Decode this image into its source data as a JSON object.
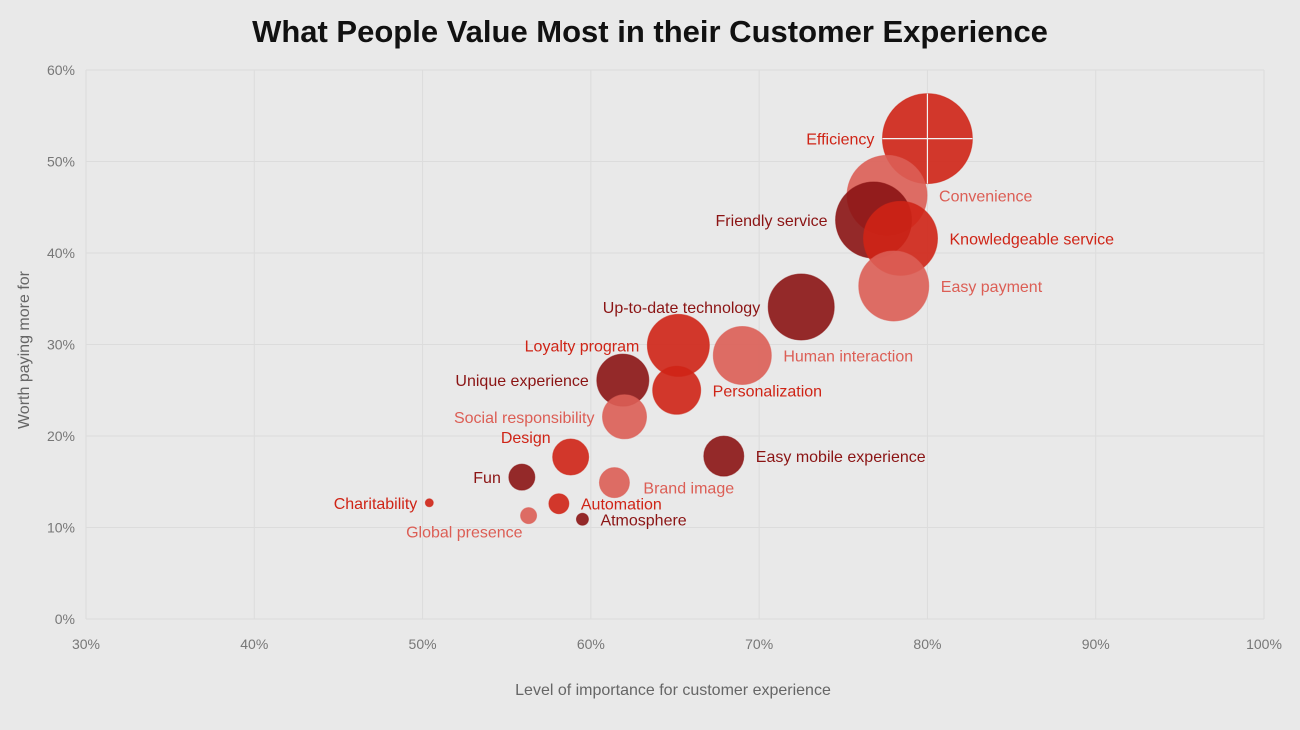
{
  "chart_data": {
    "type": "scatter",
    "title": "What People Value Most in their Customer Experience",
    "xlabel": "Level of importance for customer experience",
    "ylabel": "Worth paying more for",
    "xlim": [
      30,
      100
    ],
    "ylim": [
      0,
      60
    ],
    "x_ticks": [
      "30%",
      "40%",
      "50%",
      "60%",
      "70%",
      "80%",
      "90%",
      "100%"
    ],
    "y_ticks": [
      "0%",
      "10%",
      "20%",
      "30%",
      "40%",
      "50%",
      "60%"
    ],
    "grid": true,
    "colors": {
      "dark": "#8b1414",
      "medium": "#cf2416",
      "light": "#dc5e55"
    },
    "points": [
      {
        "label": "Efficiency",
        "x": 80.0,
        "y": 52.5,
        "size": 45,
        "tone": "medium",
        "label_side": "left"
      },
      {
        "label": "Convenience",
        "x": 77.6,
        "y": 46.3,
        "size": 40,
        "tone": "light",
        "label_side": "right"
      },
      {
        "label": "Friendly service",
        "x": 76.8,
        "y": 43.6,
        "size": 38,
        "tone": "dark",
        "label_side": "left"
      },
      {
        "label": "Knowledgeable service",
        "x": 78.4,
        "y": 41.6,
        "size": 37,
        "tone": "medium",
        "label_side": "right"
      },
      {
        "label": "Easy payment",
        "x": 78.0,
        "y": 36.4,
        "size": 35,
        "tone": "light",
        "label_side": "right"
      },
      {
        "label": "Up-to-date technology",
        "x": 72.5,
        "y": 34.1,
        "size": 33,
        "tone": "dark",
        "label_side": "left"
      },
      {
        "label": "Loyalty program",
        "x": 65.2,
        "y": 29.9,
        "size": 31,
        "tone": "medium",
        "label_side": "left"
      },
      {
        "label": "Human interaction",
        "x": 69.0,
        "y": 28.8,
        "size": 29,
        "tone": "light",
        "label_side": "right"
      },
      {
        "label": "Unique experience",
        "x": 61.9,
        "y": 26.1,
        "size": 26,
        "tone": "dark",
        "label_side": "left"
      },
      {
        "label": "Personalization",
        "x": 65.1,
        "y": 25.0,
        "size": 24,
        "tone": "medium",
        "label_side": "right"
      },
      {
        "label": "Social responsibility",
        "x": 62.0,
        "y": 22.1,
        "size": 22,
        "tone": "light",
        "label_side": "left"
      },
      {
        "label": "Design",
        "x": 58.8,
        "y": 17.7,
        "size": 18,
        "tone": "medium",
        "label_side": "left-up"
      },
      {
        "label": "Easy mobile experience",
        "x": 67.9,
        "y": 17.8,
        "size": 20,
        "tone": "dark",
        "label_side": "right"
      },
      {
        "label": "Fun",
        "x": 55.9,
        "y": 15.5,
        "size": 13,
        "tone": "dark",
        "label_side": "left"
      },
      {
        "label": "Brand image",
        "x": 61.4,
        "y": 14.9,
        "size": 15,
        "tone": "light",
        "label_side": "right-down"
      },
      {
        "label": "Charitability",
        "x": 50.4,
        "y": 12.7,
        "size": 4,
        "tone": "medium",
        "label_side": "left"
      },
      {
        "label": "Automation",
        "x": 58.1,
        "y": 12.6,
        "size": 10,
        "tone": "medium",
        "label_side": "right"
      },
      {
        "label": "Global presence",
        "x": 56.3,
        "y": 11.3,
        "size": 8,
        "tone": "light",
        "label_side": "left-down"
      },
      {
        "label": "Atmosphere",
        "x": 59.5,
        "y": 10.9,
        "size": 6,
        "tone": "dark",
        "label_side": "right"
      }
    ]
  }
}
